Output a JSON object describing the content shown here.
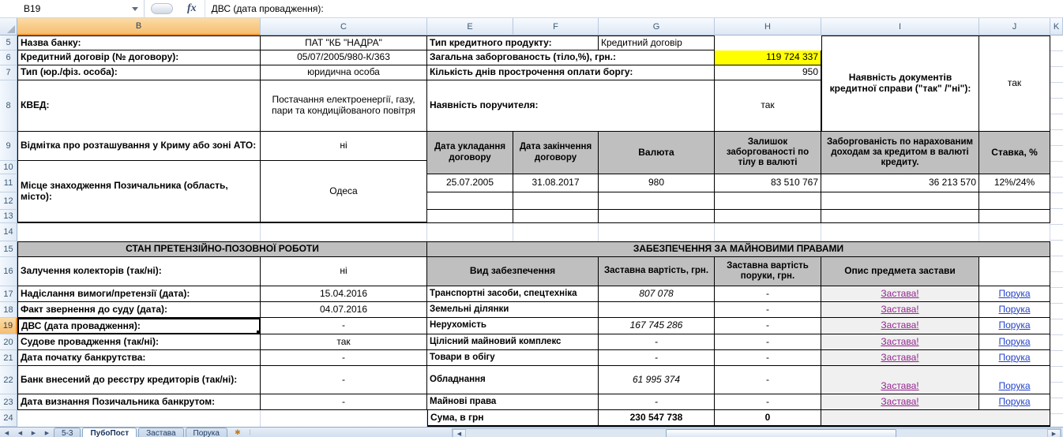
{
  "formula_bar": {
    "name_box": "B19",
    "fx_label": "fx",
    "formula": "ДВС (дата провадження):"
  },
  "columns": [
    "B",
    "C",
    "E",
    "F",
    "G",
    "H",
    "I",
    "J",
    "K"
  ],
  "row_numbers": [
    "5",
    "6",
    "7",
    "8",
    "9",
    "10",
    "11",
    "12",
    "13",
    "14",
    "15",
    "16",
    "17",
    "18",
    "19",
    "20",
    "21",
    "22",
    "23",
    "24"
  ],
  "info": {
    "bank_label": "Назва банку:",
    "bank_value": "ПАТ \"КБ \"НАДРА\"",
    "contract_label": "Кредитний договір (№ договору):",
    "contract_value": "05/07/2005/980-К/363",
    "type_label": "Тип (юр./фіз. особа):",
    "type_value": "юридична особа",
    "kved_label": "КВЕД:",
    "kved_value": "Постачання електроенергії, газу, пари та кондиційованого повітря",
    "crimea_label": "Відмітка про розташування у Криму або зоні АТО:",
    "crimea_value": "ні",
    "location_label": "Місце знаходження Позичальника (область, місто):",
    "location_value": "Одеса",
    "product_label": "Тип кредитного продукту:",
    "product_value": "Кредитний договір",
    "debt_label": "Загальна заборгованость (тіло,%), грн.:",
    "debt_value": "119 724 337",
    "overdue_label": "Кількість днів прострочення оплати боргу:",
    "overdue_value": "950",
    "guarantor_label": "Наявність поручителя:",
    "guarantor_value": "так",
    "docs_label": "Наявність документів кредитної справи (\"так\" /\"ні\"):",
    "docs_value": "так"
  },
  "credit_table": {
    "headers": [
      "Дата укладання договору",
      "Дата закінчення договору",
      "Валюта",
      "Залишок заборгованості по тілу в валюті",
      "Заборгованість по нарахованим доходам за кредитом в валюті кредиту.",
      "Ставка, %"
    ],
    "row": [
      "25.07.2005",
      "31.08.2017",
      "980",
      "83 510 767",
      "36 213 570",
      "12%/24%"
    ]
  },
  "claims": {
    "title": "СТАН ПРЕТЕНЗІЙНО-ПОЗОВНОЇ РОБОТИ",
    "rows": [
      {
        "label": "Залучення колекторів (так/ні):",
        "value": "ні"
      },
      {
        "label": "Надіслання вимоги/претензії (дата):",
        "value": "15.04.2016"
      },
      {
        "label": "Факт звернення до суду (дата):",
        "value": "04.07.2016"
      },
      {
        "label": "ДВС (дата провадження):",
        "value": "-"
      },
      {
        "label": "Судове провадження (так/ні):",
        "value": "так"
      },
      {
        "label": "Дата початку банкрутства:",
        "value": "-"
      },
      {
        "label": "Банк внесений до реєстру кредиторів (так/ні):",
        "value": "-"
      },
      {
        "label": "Дата визнання Позичальника банкрутом:",
        "value": "-"
      }
    ]
  },
  "collateral": {
    "title": "ЗАБЕЗПЕЧЕННЯ ЗА МАЙНОВИМИ ПРАВАМИ",
    "headers": {
      "type": "Вид забезпечення",
      "value": "Заставна вартість, грн.",
      "guarantee": "Заставна вартість поруки, грн.",
      "description": "Опис предмета застави"
    },
    "rows": [
      {
        "type": "Транспортні засоби, спецтехніка",
        "value": "807 078",
        "guarantee": "-",
        "link1": "Застава!",
        "link2": "Порука"
      },
      {
        "type": "Земельні ділянки",
        "value": "",
        "guarantee": "-",
        "link1": "Застава!",
        "link2": "Порука"
      },
      {
        "type": "Нерухомість",
        "value": "167 745 286",
        "guarantee": "-",
        "link1": "Застава!",
        "link2": "Порука"
      },
      {
        "type": "Цілісний майновий комплекс",
        "value": "-",
        "guarantee": "-",
        "link1": "Застава!",
        "link2": "Порука"
      },
      {
        "type": "Товари в обігу",
        "value": "-",
        "guarantee": "-",
        "link1": "Застава!",
        "link2": "Порука"
      },
      {
        "type": "Обладнання",
        "value": "61 995 374",
        "guarantee": "-",
        "link1": "Застава!",
        "link2": "Порука"
      },
      {
        "type": "Майнові права",
        "value": "-",
        "guarantee": "-",
        "link1": "Застава!",
        "link2": "Порука"
      }
    ],
    "total": {
      "label": "Сума, в грн",
      "value": "230 547 738",
      "guarantee": "0"
    }
  },
  "tabs": {
    "items": [
      "5-3",
      "ПубоПост",
      "Застава",
      "Порука"
    ],
    "active": "ПубоПост",
    "nav_prev_icon": "◀",
    "nav_next_icon": "▶",
    "add_sheet_icon": "✱"
  },
  "colors": {
    "highlight_yellow": "#FFFF00",
    "table_header_gray": "#BFBFBF",
    "link_visited_purple": "#93268F",
    "link_blue": "#2443C9",
    "selected_header_orange": "#F6BE70",
    "gridline": "#D0D7E5"
  }
}
